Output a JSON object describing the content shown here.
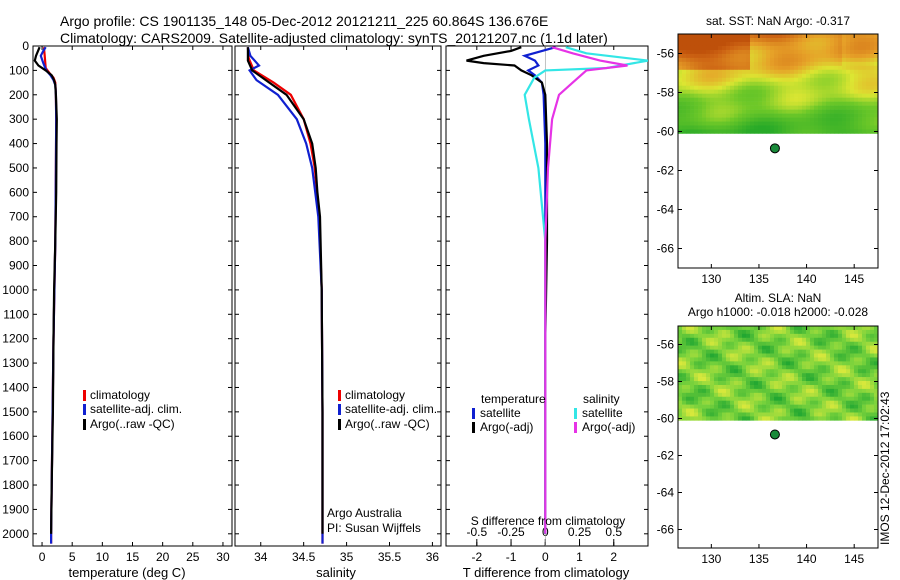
{
  "header": {
    "line1": "Argo profile: CS 1901135_148 05-Dec-2012 20121211_225 60.864S 136.676E",
    "line2": "Climatology: CARS2009. Satellite-adjusted climatology: synTS_20121207.nc (1.1d later)"
  },
  "colors": {
    "climatology": "#ee0000",
    "satellite": "#1020d0",
    "argo": "#000000",
    "cyan": "#33e6e6",
    "magenta": "#e633e6"
  },
  "chart_data": [
    {
      "id": "temperature",
      "type": "line",
      "xlabel": "temperature (deg C)",
      "ylabel": "",
      "xlim": [
        -1.5,
        31.5
      ],
      "ylim": [
        2050,
        0
      ],
      "xticks": [
        0,
        5,
        10,
        15,
        20,
        25,
        30
      ],
      "yticks": [
        0,
        100,
        200,
        300,
        400,
        500,
        600,
        700,
        800,
        900,
        1000,
        1100,
        1200,
        1300,
        1400,
        1500,
        1600,
        1700,
        1800,
        1900,
        2000
      ],
      "legend": {
        "position": "lower-center",
        "entries": [
          "climatology",
          "satellite-adj. clim.",
          "Argo(..raw -QC)"
        ]
      },
      "series": [
        {
          "name": "climatology",
          "color": "#ee0000",
          "depth": [
            5,
            30,
            60,
            90,
            110,
            130,
            150,
            200,
            300,
            500,
            800,
            1200,
            1600,
            2000,
            2040
          ],
          "values": [
            0.3,
            0.4,
            0.5,
            0.6,
            1.2,
            1.9,
            2.2,
            2.3,
            2.35,
            2.3,
            2.2,
            1.9,
            1.7,
            1.5,
            1.5
          ]
        },
        {
          "name": "satellite-adj. clim.",
          "color": "#1020d0",
          "depth": [
            5,
            20,
            40,
            70,
            100,
            120,
            140,
            160,
            200,
            300,
            500,
            800,
            1200,
            1600,
            2000,
            2040
          ],
          "values": [
            0.6,
            0.2,
            -0.2,
            0.2,
            0.7,
            1.4,
            1.9,
            2.2,
            2.3,
            2.35,
            2.3,
            2.2,
            1.9,
            1.7,
            1.5,
            1.5
          ]
        },
        {
          "name": "Argo(..raw -QC)",
          "color": "#000000",
          "depth": [
            5,
            40,
            60,
            80,
            100,
            120,
            140,
            160,
            200,
            300,
            400,
            600,
            800,
            1000,
            1200,
            1500,
            1800,
            2000
          ],
          "values": [
            -0.4,
            -1.0,
            -1.2,
            -0.6,
            0.6,
            1.6,
            2.0,
            2.2,
            2.3,
            2.45,
            2.4,
            2.35,
            2.2,
            2.0,
            1.9,
            1.8,
            1.6,
            1.5
          ]
        }
      ]
    },
    {
      "id": "salinity",
      "type": "line",
      "xlabel": "salinity",
      "ylabel": "",
      "xlim": [
        33.7,
        36.1
      ],
      "ylim": [
        2050,
        0
      ],
      "xticks": [
        34,
        34.5,
        35,
        35.5,
        36
      ],
      "xticklabels": [
        "34",
        "34.5",
        "35",
        "35.5",
        "36"
      ],
      "legend": {
        "position": "lower-center",
        "entries": [
          "climatology",
          "satellite-adj. clim.",
          "Argo(..raw -QC)"
        ]
      },
      "annotation": [
        "Argo Australia",
        "PI: Susan Wijffels"
      ],
      "series": [
        {
          "name": "climatology",
          "color": "#ee0000",
          "depth": [
            5,
            50,
            100,
            150,
            200,
            300,
            400,
            500,
            700,
            1000,
            1500,
            2040
          ],
          "values": [
            33.85,
            33.86,
            33.92,
            34.15,
            34.35,
            34.5,
            34.58,
            34.63,
            34.68,
            34.71,
            34.72,
            34.72
          ]
        },
        {
          "name": "satellite-adj. clim.",
          "color": "#1020d0",
          "depth": [
            5,
            40,
            80,
            100,
            140,
            200,
            300,
            400,
            500,
            700,
            1000,
            1500,
            2040
          ],
          "values": [
            33.85,
            33.88,
            33.98,
            33.87,
            33.95,
            34.2,
            34.42,
            34.53,
            34.6,
            34.67,
            34.71,
            34.72,
            34.72
          ]
        },
        {
          "name": "Argo(..raw -QC)",
          "color": "#000000",
          "depth": [
            5,
            60,
            100,
            150,
            200,
            300,
            400,
            500,
            600,
            700,
            1000,
            1500,
            2000
          ],
          "values": [
            33.85,
            33.85,
            33.9,
            34.1,
            34.3,
            34.5,
            34.6,
            34.64,
            34.66,
            34.69,
            34.71,
            34.72,
            34.72
          ]
        }
      ]
    },
    {
      "id": "difference",
      "type": "line",
      "xlabel": "T difference from climatology",
      "xlabel_top": "S difference from climatology",
      "xlim": [
        -2.9,
        3.0
      ],
      "ylim": [
        2050,
        0
      ],
      "xticks": [
        -2,
        -1,
        0,
        1,
        2
      ],
      "top_ticks": [
        -0.5,
        -0.25,
        0,
        0.25,
        0.5
      ],
      "top_ticklabels": [
        "-0.5",
        "-0.25",
        "0",
        "0.25",
        "0.5"
      ],
      "legend": {
        "position": "lower-center",
        "temperature_heading": "temperature",
        "salinity_heading": "salinity",
        "temperature_entries": [
          "satellite",
          "Argo(-adj)"
        ],
        "salinity_entries": [
          "satellite",
          "Argo(-adj)"
        ]
      },
      "series": [
        {
          "name": "satellite",
          "group": "temperature",
          "color": "#1020d0",
          "depth": [
            5,
            40,
            60,
            80,
            100,
            120,
            150,
            200,
            400,
            800,
            1200,
            1600,
            2000
          ],
          "values": [
            0.3,
            -0.6,
            -0.3,
            -0.2,
            -0.5,
            -0.3,
            -0.1,
            -0.05,
            0,
            0,
            0,
            0,
            0
          ]
        },
        {
          "name": "Argo(-adj)",
          "group": "temperature",
          "color": "#000000",
          "depth": [
            5,
            20,
            40,
            60,
            70,
            80,
            100,
            120,
            150,
            200,
            400,
            800,
            1200,
            2000
          ],
          "values": [
            -0.7,
            -1.0,
            -1.8,
            -2.3,
            -1.8,
            -0.9,
            -0.7,
            -0.4,
            -0.1,
            0,
            0.05,
            0.05,
            0,
            0
          ]
        },
        {
          "name": "satellite",
          "group": "salinity",
          "color": "#33e6e6",
          "depth": [
            5,
            30,
            60,
            90,
            100,
            130,
            200,
            300,
            500,
            800,
            1200,
            2000
          ],
          "values": [
            0.15,
            0.3,
            0.75,
            0.45,
            0.0,
            -0.08,
            -0.15,
            -0.12,
            -0.05,
            0,
            0,
            0
          ]
        },
        {
          "name": "Argo(-adj)",
          "group": "salinity",
          "color": "#e633e6",
          "depth": [
            5,
            30,
            60,
            80,
            100,
            150,
            200,
            300,
            500,
            800,
            1200,
            2000
          ],
          "values": [
            0.05,
            0.2,
            0.4,
            0.6,
            0.3,
            0.2,
            0.1,
            0.05,
            0.02,
            0.0,
            0.0,
            0.0
          ]
        }
      ]
    }
  ],
  "maps": [
    {
      "id": "sst-map",
      "title": "sat. SST: NaN Argo: -0.317",
      "xlim": [
        126.5,
        147.5
      ],
      "ylim": [
        -67,
        -55
      ],
      "xticks": [
        130,
        135,
        140,
        145
      ],
      "yticks": [
        -56,
        -58,
        -60,
        -62,
        -64,
        -66
      ],
      "yticklabels": [
        "-56",
        "-58",
        "-60",
        "-62",
        "-64",
        "-66"
      ],
      "data_lat_min": -60.1,
      "point": {
        "lon": 136.676,
        "lat": -60.864,
        "color": "#1a8a3a"
      },
      "palette": "sst"
    },
    {
      "id": "sla-map",
      "title": "Altim. SLA: NaN",
      "subtitle": "Argo h1000: -0.018 h2000: -0.028",
      "xlim": [
        126.5,
        147.5
      ],
      "ylim": [
        -67,
        -55
      ],
      "xticks": [
        130,
        135,
        140,
        145
      ],
      "yticks": [
        -56,
        -58,
        -60,
        -62,
        -64,
        -66
      ],
      "yticklabels": [
        "-56",
        "-58",
        "-60",
        "-62",
        "-64",
        "-66"
      ],
      "data_lat_min": -60.1,
      "point": {
        "lon": 136.676,
        "lat": -60.864,
        "color": "#1a8a3a"
      },
      "palette": "sla"
    }
  ],
  "footer": {
    "stamp": "IMOS 12-Dec-2012 17:02:43"
  }
}
